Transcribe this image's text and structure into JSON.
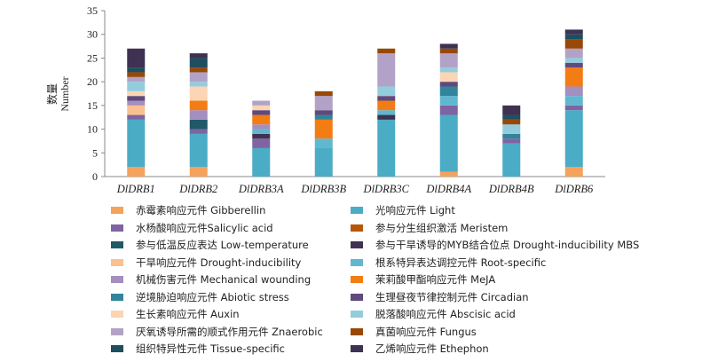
{
  "chart_data": {
    "type": "bar",
    "stacked": true,
    "ylabel": [
      "数量",
      "Number"
    ],
    "ylim": [
      0,
      35
    ],
    "yticks": [
      0,
      5,
      10,
      15,
      20,
      25,
      30,
      35
    ],
    "categories": [
      "DlDRB1",
      "DlDRB2",
      "DlDRB3A",
      "DlDRB3B",
      "DlDRB3C",
      "DlDRB4A",
      "DlDRB4B",
      "DlDRB6"
    ],
    "legend_position": "bottom",
    "series": [
      {
        "name": "赤霉素响应元件 Gibberellin",
        "color": "#F4A25C",
        "values": [
          2,
          2,
          0,
          0,
          0,
          1,
          0,
          2
        ]
      },
      {
        "name": "光响应元件 Light",
        "color": "#4BACC6",
        "values": [
          10,
          7,
          6,
          6,
          12,
          12,
          7,
          12
        ]
      },
      {
        "name": "水杨酸响应元件Salicylic acid",
        "color": "#8064A2",
        "values": [
          1,
          1,
          2,
          0,
          0,
          2,
          1,
          1
        ]
      },
      {
        "name": "参与分生组织激活 Meristem",
        "color": "#B65708",
        "values": [
          0,
          0,
          0,
          0,
          0,
          0,
          0,
          0
        ]
      },
      {
        "name": "参与低温反应表达 Low-temperature",
        "color": "#215968",
        "values": [
          0,
          2,
          0,
          0,
          0,
          0,
          0,
          0
        ]
      },
      {
        "name": "参与干旱诱导的MYB结合位点 Drought-inducibility MBS",
        "color": "#403151",
        "values": [
          0,
          0,
          1,
          0,
          1,
          0,
          0,
          0
        ]
      },
      {
        "name": "干旱响应元件 Drought-inducibility",
        "color": "#FAC090",
        "values": [
          2,
          0,
          0,
          0,
          0,
          0,
          0,
          0
        ]
      },
      {
        "name": "根系特异表达调控元件 Root-specific",
        "color": "#5FB8CF",
        "values": [
          0,
          0,
          1,
          2,
          1,
          2,
          0,
          2
        ]
      },
      {
        "name": "机械伤害元件 Mechanical wounding",
        "color": "#A38FC0",
        "values": [
          1,
          2,
          1,
          0,
          0,
          0,
          0,
          2
        ]
      },
      {
        "name": "茉莉酸甲酯响应元件 MeJA",
        "color": "#F47C14",
        "values": [
          0,
          2,
          2,
          4,
          2,
          0,
          0,
          4
        ]
      },
      {
        "name": "逆境胁迫响应元件 Abiotic stress",
        "color": "#31849B",
        "values": [
          0,
          0,
          0,
          1,
          0,
          2,
          1,
          0
        ]
      },
      {
        "name": "生理昼夜节律控制元件 Circadian",
        "color": "#604A7B",
        "values": [
          1,
          0,
          1,
          1,
          1,
          1,
          0,
          1
        ]
      },
      {
        "name": "生长素响应元件 Auxin",
        "color": "#FCD5B5",
        "values": [
          1,
          3,
          1,
          0,
          0,
          2,
          0,
          0
        ]
      },
      {
        "name": "脱落酸响应元件 Abscisic acid",
        "color": "#93CDDD",
        "values": [
          2,
          1,
          0,
          0,
          2,
          1,
          2,
          1
        ]
      },
      {
        "name": "厌氧诱导所需的顺式作用元件 Znaerobic",
        "color": "#B3A2C7",
        "values": [
          1,
          2,
          1,
          3,
          7,
          3,
          0,
          2
        ]
      },
      {
        "name": "真菌响应元件 Fungus",
        "color": "#984807",
        "values": [
          1,
          1,
          0,
          1,
          1,
          1,
          1,
          2
        ]
      },
      {
        "name": "组织特异性元件 Tissue-specific",
        "color": "#1F4E5F",
        "values": [
          1,
          2,
          0,
          0,
          0,
          0,
          1,
          1
        ]
      },
      {
        "name": "乙烯响应元件 Ethephon",
        "color": "#3F3151",
        "values": [
          4,
          1,
          0,
          0,
          0,
          1,
          2,
          1
        ]
      }
    ]
  }
}
